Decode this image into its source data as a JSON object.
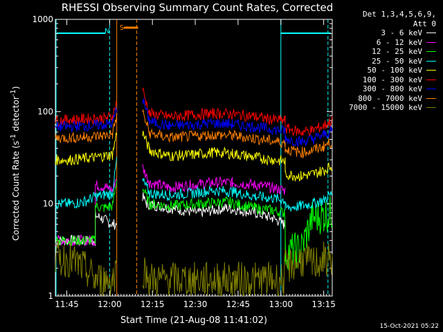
{
  "chart_data": {
    "type": "line",
    "title": "RHESSI Observing Summary Count Rates, Corrected",
    "xlabel": "Start Time (21-Aug-08 11:41:02)",
    "ylabel_main": "Corrected Count Rate (s",
    "ylabel_sup1": "-1",
    "ylabel_mid": " detector",
    "ylabel_sup2": "-1",
    "ylabel_end": ")",
    "y_scale": "log",
    "ylim": [
      1,
      1000
    ],
    "x_minutes_range": [
      0,
      97
    ],
    "x_ticks": [
      {
        "label": "11:45",
        "min": 4
      },
      {
        "label": "12:00",
        "min": 19
      },
      {
        "label": "12:15",
        "min": 34
      },
      {
        "label": "12:30",
        "min": 49
      },
      {
        "label": "12:45",
        "min": 64
      },
      {
        "label": "13:00",
        "min": 79
      },
      {
        "label": "13:15",
        "min": 94
      }
    ],
    "y_ticks": [
      {
        "label": "1",
        "value": 1
      },
      {
        "label": "10",
        "value": 10
      },
      {
        "label": "100",
        "value": 100
      },
      {
        "label": "1000",
        "value": 1000
      }
    ],
    "legend_header": [
      "Det 1,3,4,5,6,9,",
      "Att 0"
    ],
    "series": [
      {
        "name": "3 - 6 keV",
        "color": "#ffffff",
        "values": [
          [
            0,
            4
          ],
          [
            14,
            4
          ],
          [
            14,
            7.5
          ],
          [
            16,
            7
          ],
          [
            18,
            6.5
          ],
          [
            20,
            6
          ],
          [
            21.5,
            6
          ],
          [
            21.5,
            null
          ],
          [
            30.5,
            null
          ],
          [
            30.5,
            12
          ],
          [
            32,
            10
          ],
          [
            40,
            9
          ],
          [
            50,
            8
          ],
          [
            60,
            9
          ],
          [
            70,
            8
          ],
          [
            76,
            7
          ],
          [
            78,
            6.5
          ],
          [
            80,
            6
          ],
          [
            80.5,
            6
          ],
          [
            80.5,
            null
          ],
          [
            97,
            null
          ]
        ]
      },
      {
        "name": "6 - 12 keV",
        "color": "#ff00ff",
        "values": [
          [
            0,
            4
          ],
          [
            14,
            4
          ],
          [
            14,
            16
          ],
          [
            18,
            15
          ],
          [
            20,
            14
          ],
          [
            21.5,
            20
          ],
          [
            21.5,
            null
          ],
          [
            30.5,
            null
          ],
          [
            30.5,
            25
          ],
          [
            33,
            17
          ],
          [
            40,
            15
          ],
          [
            48,
            16
          ],
          [
            55,
            17
          ],
          [
            62,
            17
          ],
          [
            70,
            16
          ],
          [
            76,
            15
          ],
          [
            80,
            14
          ],
          [
            80.5,
            14
          ],
          [
            80.5,
            null
          ],
          [
            97,
            null
          ]
        ]
      },
      {
        "name": "12 - 25 keV",
        "color": "#00ff00",
        "values": [
          [
            0,
            4
          ],
          [
            10,
            4
          ],
          [
            14,
            4
          ],
          [
            14,
            9.5
          ],
          [
            17,
            9
          ],
          [
            20,
            9.5
          ],
          [
            21.5,
            18
          ],
          [
            21.5,
            null
          ],
          [
            30.5,
            null
          ],
          [
            30.5,
            15
          ],
          [
            33,
            10
          ],
          [
            40,
            9.5
          ],
          [
            50,
            10
          ],
          [
            60,
            10.5
          ],
          [
            70,
            9
          ],
          [
            76,
            8.5
          ],
          [
            80,
            8
          ],
          [
            80.5,
            8
          ],
          [
            80.5,
            3
          ],
          [
            86,
            3.2
          ],
          [
            90,
            7
          ],
          [
            94,
            7.5
          ],
          [
            97,
            8
          ]
        ]
      },
      {
        "name": "25 - 50 keV",
        "color": "#00ffff",
        "values": [
          [
            0,
            10
          ],
          [
            5,
            10
          ],
          [
            10,
            10.5
          ],
          [
            14,
            12
          ],
          [
            17,
            12.5
          ],
          [
            20,
            13
          ],
          [
            21.5,
            30
          ],
          [
            21.5,
            null
          ],
          [
            30.5,
            null
          ],
          [
            30.5,
            18
          ],
          [
            33,
            13
          ],
          [
            40,
            12.5
          ],
          [
            48,
            13
          ],
          [
            55,
            14
          ],
          [
            62,
            13.5
          ],
          [
            70,
            12
          ],
          [
            76,
            11.5
          ],
          [
            80,
            11
          ],
          [
            80.5,
            11
          ],
          [
            80.5,
            9
          ],
          [
            86,
            9.5
          ],
          [
            90,
            10
          ],
          [
            94,
            11
          ],
          [
            97,
            13
          ]
        ]
      },
      {
        "name": "50 - 100 keV",
        "color": "#ffff00",
        "values": [
          [
            0,
            30
          ],
          [
            5,
            30
          ],
          [
            10,
            31
          ],
          [
            14,
            32
          ],
          [
            17,
            33
          ],
          [
            20,
            34
          ],
          [
            21.5,
            60
          ],
          [
            21.5,
            null
          ],
          [
            30.5,
            null
          ],
          [
            30.5,
            60
          ],
          [
            33,
            38
          ],
          [
            40,
            33
          ],
          [
            48,
            34
          ],
          [
            55,
            36
          ],
          [
            62,
            35
          ],
          [
            70,
            32
          ],
          [
            76,
            30
          ],
          [
            80,
            29
          ],
          [
            80.5,
            29
          ],
          [
            80.5,
            21
          ],
          [
            86,
            20
          ],
          [
            90,
            21
          ],
          [
            94,
            23
          ],
          [
            97,
            26
          ]
        ]
      },
      {
        "name": "100 - 300 keV",
        "color": "#ff0000",
        "values": [
          [
            0,
            80
          ],
          [
            5,
            82
          ],
          [
            10,
            83
          ],
          [
            14,
            84
          ],
          [
            17,
            85
          ],
          [
            20,
            88
          ],
          [
            21.5,
            130
          ],
          [
            21.5,
            null
          ],
          [
            30.5,
            null
          ],
          [
            30.5,
            175
          ],
          [
            33,
            95
          ],
          [
            40,
            88
          ],
          [
            48,
            92
          ],
          [
            55,
            96
          ],
          [
            62,
            94
          ],
          [
            70,
            88
          ],
          [
            76,
            82
          ],
          [
            80,
            80
          ],
          [
            80.5,
            80
          ],
          [
            80.5,
            66
          ],
          [
            86,
            60
          ],
          [
            90,
            63
          ],
          [
            94,
            70
          ],
          [
            97,
            80
          ]
        ]
      },
      {
        "name": "300 - 800 keV",
        "color": "#0000ff",
        "values": [
          [
            0,
            68
          ],
          [
            5,
            69
          ],
          [
            10,
            70
          ],
          [
            14,
            71
          ],
          [
            17,
            72
          ],
          [
            20,
            74
          ],
          [
            21.5,
            110
          ],
          [
            21.5,
            null
          ],
          [
            30.5,
            null
          ],
          [
            30.5,
            140
          ],
          [
            33,
            78
          ],
          [
            40,
            70
          ],
          [
            48,
            72
          ],
          [
            55,
            75
          ],
          [
            62,
            73
          ],
          [
            70,
            68
          ],
          [
            76,
            64
          ],
          [
            80,
            62
          ],
          [
            80.5,
            62
          ],
          [
            80.5,
            51
          ],
          [
            86,
            47
          ],
          [
            90,
            50
          ],
          [
            94,
            56
          ],
          [
            97,
            62
          ]
        ]
      },
      {
        "name": "800 - 7000 keV",
        "color": "#ff8000",
        "values": [
          [
            0,
            52
          ],
          [
            5,
            52
          ],
          [
            10,
            53
          ],
          [
            14,
            54
          ],
          [
            17,
            55
          ],
          [
            20,
            57
          ],
          [
            21.5,
            90
          ],
          [
            21.5,
            null
          ],
          [
            30.5,
            null
          ],
          [
            30.5,
            100
          ],
          [
            33,
            58
          ],
          [
            40,
            52
          ],
          [
            48,
            54
          ],
          [
            55,
            56
          ],
          [
            62,
            55
          ],
          [
            70,
            51
          ],
          [
            76,
            48
          ],
          [
            80,
            46
          ],
          [
            80.5,
            46
          ],
          [
            80.5,
            39
          ],
          [
            86,
            36
          ],
          [
            90,
            38
          ],
          [
            94,
            42
          ],
          [
            97,
            47
          ]
        ]
      },
      {
        "name": "7000 - 15000 keV",
        "color": "#808000",
        "values": [
          [
            0,
            2.5
          ],
          [
            5,
            2.5
          ],
          [
            10,
            2
          ],
          [
            14,
            1.5
          ],
          [
            17,
            1.5
          ],
          [
            20,
            1.5
          ],
          [
            21.5,
            2
          ],
          [
            21.5,
            null
          ],
          [
            30.5,
            null
          ],
          [
            30.5,
            2
          ],
          [
            33,
            1.5
          ],
          [
            40,
            1.5
          ],
          [
            48,
            1.5
          ],
          [
            55,
            1.5
          ],
          [
            62,
            1.5
          ],
          [
            70,
            1.5
          ],
          [
            76,
            1.5
          ],
          [
            80,
            1.5
          ],
          [
            80.5,
            2
          ],
          [
            86,
            2.5
          ],
          [
            90,
            2.2
          ],
          [
            94,
            2.5
          ],
          [
            97,
            2.5
          ]
        ]
      }
    ],
    "annotations": [
      {
        "text": "N",
        "color": "#00ffff"
      },
      {
        "text": "S",
        "color": "#ff8000"
      }
    ],
    "timestamp": "15-Oct-2021 05:22"
  }
}
